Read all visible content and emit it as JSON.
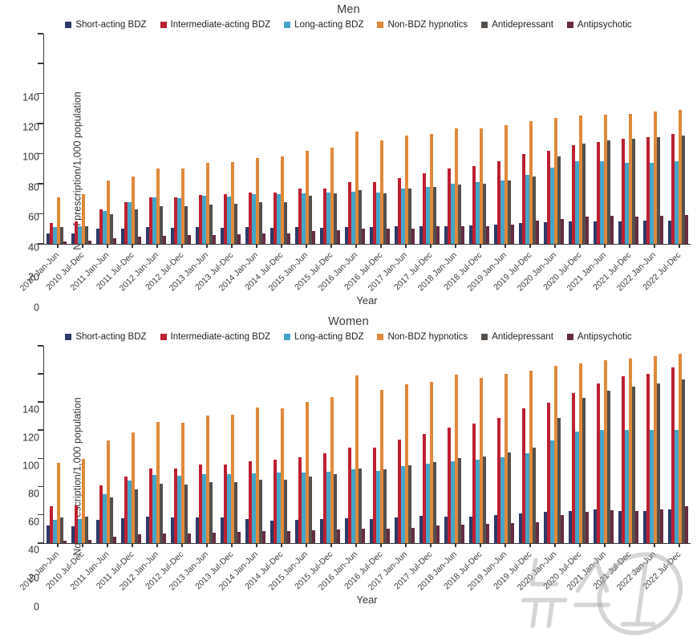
{
  "watermark_text": "뉴스1",
  "chart_data": [
    {
      "type": "bar",
      "title": "Men",
      "ylabel": "No. of prescription/1,000 population",
      "xlabel": "Year",
      "ylim": [
        0,
        140
      ],
      "yticks": [
        0,
        20,
        40,
        60,
        80,
        100,
        120,
        140
      ],
      "grid": false,
      "legend_position": "top",
      "categories": [
        "2010 Jan-Jun",
        "2010 Jul-Dec",
        "2011 Jan-Jun",
        "2011 Jul-Dec",
        "2012 Jan-Jun",
        "2012 Jul-Dec",
        "2013 Jan-Jun",
        "2013 Jul-Dec",
        "2014 Jan-Jun",
        "2014 Jul-Dec",
        "2015 Jan-Jun",
        "2015 Jul-Dec",
        "2016 Jan-Jun",
        "2016 Jul-Dec",
        "2017 Jan-Jun",
        "2017 Jul-Dec",
        "2018 Jan-Jun",
        "2018 Jul-Dec",
        "2019 Jan-Jun",
        "2019 Jul-Dec",
        "2020 Jan-Jun",
        "2020 Jul-Dec",
        "2021 Jan-Jun",
        "2021 Jul-Dec",
        "2022 Jan-Jun",
        "2022 Jul-Dec"
      ],
      "series": [
        {
          "name": "Short-acting BDZ",
          "color": "#2d3a68",
          "values": [
            7,
            7,
            10,
            10,
            11,
            10.5,
            11,
            10.5,
            11,
            10.5,
            11,
            10.5,
            11,
            11,
            12,
            12,
            12,
            12.5,
            13,
            14,
            14.5,
            15,
            15,
            15,
            15.5,
            15.5
          ]
        },
        {
          "name": "Intermediate-acting BDZ",
          "color": "#bc2031",
          "values": [
            14,
            15,
            23,
            28,
            31,
            31,
            32.5,
            33,
            34,
            34,
            37,
            37,
            41,
            41,
            44,
            47,
            50,
            52,
            55,
            60,
            62,
            66,
            68,
            70,
            71,
            73
          ]
        },
        {
          "name": "Long-acting BDZ",
          "color": "#44a5c9",
          "values": [
            11,
            12,
            22,
            28,
            31,
            30.5,
            32,
            31.5,
            33,
            33,
            33.5,
            34,
            35,
            34,
            37,
            38,
            40,
            41,
            42,
            46,
            51,
            55,
            55,
            54,
            54,
            55
          ]
        },
        {
          "name": "Non-BDZ hypnotics",
          "color": "#e0893a",
          "values": [
            31,
            33,
            42,
            45,
            50.5,
            50.5,
            54,
            54.5,
            57,
            58,
            62,
            64,
            75,
            69,
            72,
            73,
            77,
            77,
            79,
            82,
            84,
            85.5,
            86,
            86.5,
            88,
            89.5
          ]
        },
        {
          "name": "Antidepressant",
          "color": "#55504c",
          "values": [
            11,
            12,
            20,
            23,
            25,
            25,
            26,
            26.5,
            28,
            28,
            32,
            33.5,
            36,
            33.5,
            37,
            38,
            39.5,
            40,
            42,
            45,
            58,
            67,
            69,
            70,
            71,
            72
          ]
        },
        {
          "name": "Antipsychotic",
          "color": "#662c44",
          "values": [
            1.5,
            2,
            4,
            5,
            5.5,
            6,
            6,
            6.5,
            7,
            7,
            8.5,
            9,
            10,
            10,
            10,
            11.5,
            12,
            12,
            13,
            15.5,
            16.5,
            18,
            18.5,
            18,
            18.5,
            19
          ]
        }
      ]
    },
    {
      "type": "bar",
      "title": "Women",
      "ylabel": "No. of prescription/1,000 population",
      "xlabel": "Year",
      "ylim": [
        0,
        140
      ],
      "yticks": [
        0,
        20,
        40,
        60,
        80,
        100,
        120,
        140
      ],
      "grid": false,
      "legend_position": "top",
      "categories": [
        "2010 Jan-Jun",
        "2010 Jul-Dec",
        "2011 Jan-Jun",
        "2011 Jul-Dec",
        "2012 Jan-Jun",
        "2012 Jul-Dec",
        "2013 Jan-Jun",
        "2013 Jul-Dec",
        "2014 Jan-Jun",
        "2014 Jul-Dec",
        "2015 Jan-Jun",
        "2015 Jul-Dec",
        "2016 Jan-Jun",
        "2016 Jul-Dec",
        "2017 Jan-Jun",
        "2017 Jul-Dec",
        "2018 Jan-Jun",
        "2018 Jul-Dec",
        "2019 Jan-Jun",
        "2019 Jul-Dec",
        "2020 Jan-Jun",
        "2020 Jul-Dec",
        "2021 Jan-Jun",
        "2021 Jul-Dec",
        "2022 Jan-Jun",
        "2022 Jul-Dec"
      ],
      "series": [
        {
          "name": "Short-acting BDZ",
          "color": "#2d3a68",
          "values": [
            12.5,
            12,
            16.5,
            17.5,
            19,
            18,
            18.5,
            18,
            17,
            16,
            16.5,
            17,
            17.5,
            17,
            18,
            19.5,
            19,
            19,
            20,
            21,
            22,
            23,
            24,
            23,
            23,
            24
          ]
        },
        {
          "name": "Intermediate-acting BDZ",
          "color": "#bc2031",
          "values": [
            26,
            27,
            41,
            47,
            53,
            53,
            55.5,
            56,
            58,
            59,
            61,
            64,
            68,
            68,
            73.5,
            77.5,
            82,
            85,
            89,
            95.5,
            99.5,
            106.5,
            113,
            118.5,
            120,
            124.5
          ]
        },
        {
          "name": "Long-acting BDZ",
          "color": "#44a5c9",
          "values": [
            16.5,
            17,
            35,
            44.5,
            48.5,
            48,
            49,
            49,
            49.5,
            50,
            50,
            50.5,
            52.5,
            51.5,
            54.5,
            56.5,
            58,
            59,
            61,
            64,
            73,
            79,
            80.5,
            80.5,
            80,
            80.5
          ]
        },
        {
          "name": "Non-BDZ hypnotics",
          "color": "#e0893a",
          "values": [
            57,
            59.5,
            73,
            78.5,
            86,
            85.5,
            90.5,
            91,
            96,
            95.5,
            100,
            103.5,
            119,
            108.5,
            112.5,
            114.5,
            119.5,
            117.5,
            120,
            122.5,
            125.5,
            127.5,
            130,
            131,
            132.5,
            134.5
          ]
        },
        {
          "name": "Antidepressant",
          "color": "#55504c",
          "values": [
            18,
            19,
            32.5,
            38,
            42,
            41.5,
            43.5,
            43.5,
            45,
            45,
            47,
            49,
            53,
            52.5,
            55,
            57.5,
            60.5,
            61.5,
            64.5,
            68,
            89,
            103,
            108,
            111,
            113.5,
            116
          ]
        },
        {
          "name": "Antipsychotic",
          "color": "#662c44",
          "values": [
            2,
            2.5,
            4.5,
            6,
            7,
            7,
            7.5,
            8,
            8.5,
            8.5,
            9,
            9.5,
            10,
            10.5,
            11,
            12.5,
            13,
            13.5,
            14,
            15,
            20,
            22,
            23.5,
            22.5,
            24,
            26
          ]
        }
      ]
    }
  ]
}
